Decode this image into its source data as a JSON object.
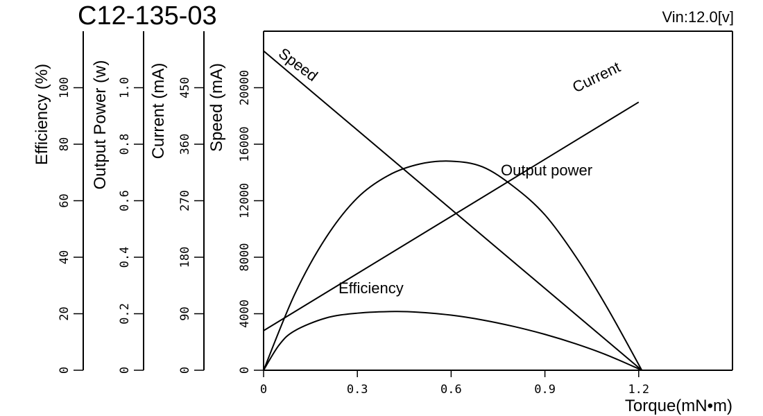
{
  "chart_data": {
    "type": "line",
    "title": "C12-135-03",
    "annotation": "Vin:12.0[v]",
    "xlabel": "Torque(mN•m)",
    "xlim": [
      0,
      1.5
    ],
    "xticks": [
      0,
      0.3,
      0.6,
      0.9,
      1.2
    ],
    "xtick_labels": [
      "0",
      "0.3",
      "0.6",
      "0.9",
      "1.2"
    ],
    "grid": false,
    "axes": [
      {
        "id": "efficiency",
        "label": "Efficiency (%)",
        "range": [
          0,
          120
        ],
        "ticks": [
          0,
          20,
          40,
          60,
          80,
          100
        ],
        "tick_labels": [
          "0",
          "20",
          "40",
          "60",
          "80",
          "100"
        ]
      },
      {
        "id": "power",
        "label": "Output Power (w)",
        "range": [
          0,
          1.2
        ],
        "ticks": [
          0,
          0.2,
          0.4,
          0.6,
          0.8,
          1.0
        ],
        "tick_labels": [
          "0",
          "0.2",
          "0.4",
          "0.6",
          "0.8",
          "1.0"
        ]
      },
      {
        "id": "current",
        "label": "Current (mA)",
        "range": [
          0,
          540
        ],
        "ticks": [
          0,
          90,
          180,
          270,
          360,
          450
        ],
        "tick_labels": [
          "0",
          "90",
          "180",
          "270",
          "360",
          "450"
        ]
      },
      {
        "id": "speed",
        "label": "Speed  (mA)",
        "range": [
          0,
          24000
        ],
        "ticks": [
          0,
          4000,
          8000,
          12000,
          16000,
          20000
        ],
        "tick_labels": [
          "0",
          "4000",
          "8000",
          "12000",
          "16000",
          "20000"
        ]
      }
    ],
    "series": [
      {
        "name": "Speed",
        "axis": "speed",
        "x": [
          0,
          1.21
        ],
        "y": [
          22600,
          0
        ]
      },
      {
        "name": "Current",
        "axis": "current",
        "x": [
          0,
          1.2
        ],
        "y": [
          63,
          427
        ]
      },
      {
        "name": "Output power",
        "axis": "power",
        "x": [
          0,
          0.1,
          0.2,
          0.3,
          0.4,
          0.5,
          0.6,
          0.7,
          0.8,
          0.9,
          1.0,
          1.1,
          1.21
        ],
        "y": [
          0,
          0.27,
          0.47,
          0.61,
          0.69,
          0.73,
          0.74,
          0.72,
          0.65,
          0.55,
          0.4,
          0.22,
          0
        ]
      },
      {
        "name": "Efficiency",
        "axis": "efficiency",
        "x": [
          0,
          0.05,
          0.1,
          0.2,
          0.3,
          0.42,
          0.5,
          0.6,
          0.7,
          0.8,
          0.9,
          1.0,
          1.1,
          1.21
        ],
        "y": [
          0,
          9,
          14,
          18.5,
          20.2,
          20.8,
          20.5,
          19.5,
          17.8,
          15.5,
          12.7,
          9.3,
          5.3,
          0
        ]
      }
    ]
  }
}
